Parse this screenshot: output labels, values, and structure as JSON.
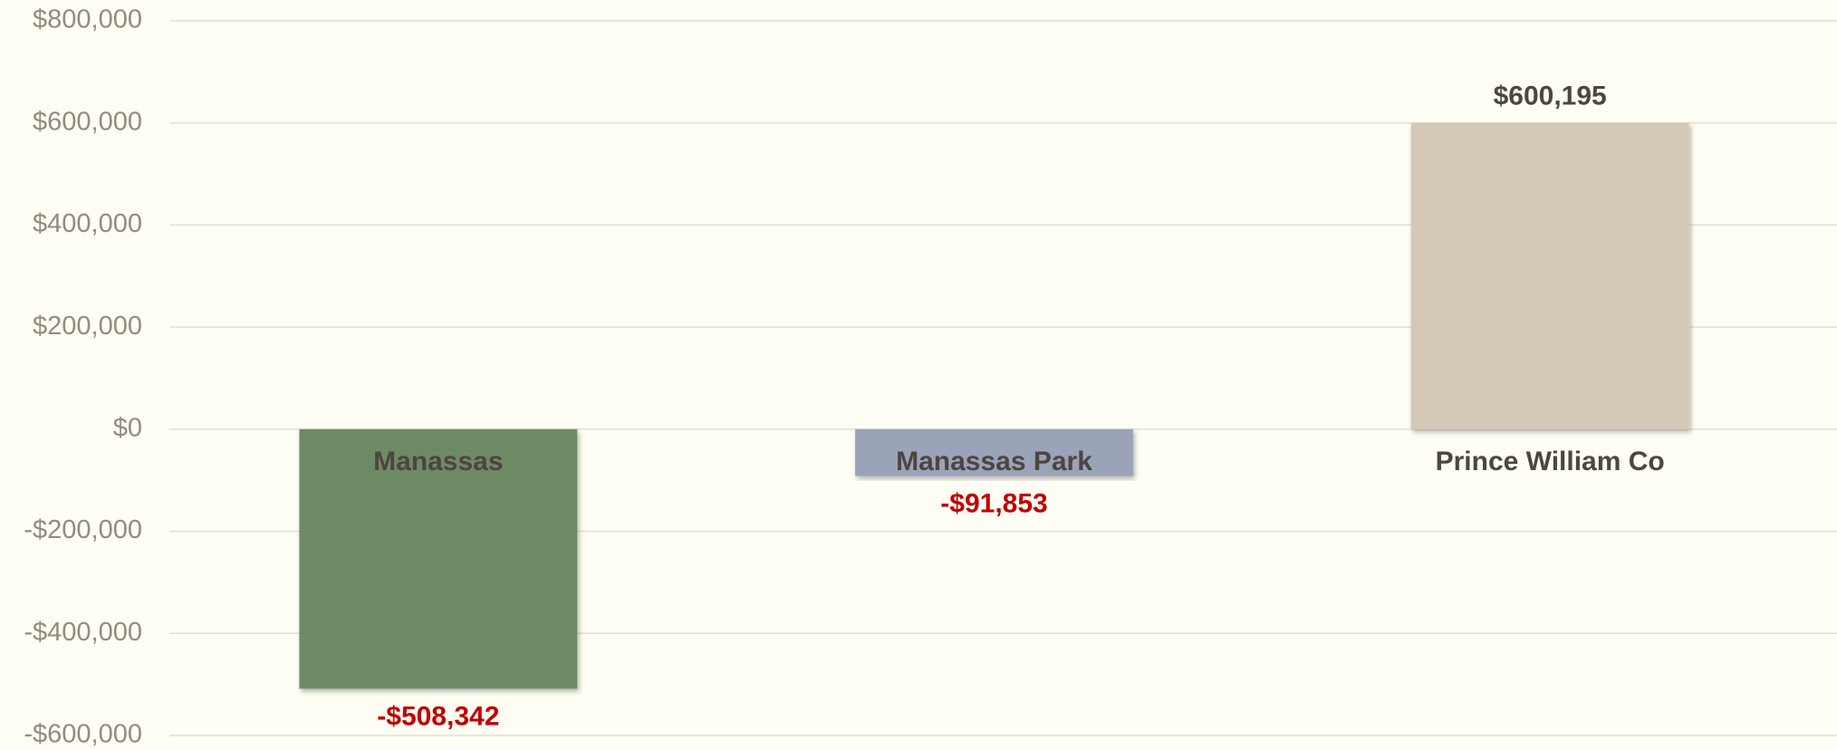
{
  "chart_data": {
    "type": "bar",
    "categories": [
      "Manassas",
      "Manassas Park",
      "Prince William Co"
    ],
    "values": [
      -508342,
      -91853,
      600195
    ],
    "value_labels": [
      "-$508,342",
      "-$91,853",
      "$600,195"
    ],
    "colors": [
      "#6e8a65",
      "#9aa3b8",
      "#d4c8b6"
    ],
    "value_label_colors": [
      "#c00000",
      "#c00000",
      "#4d4540"
    ],
    "ylim": [
      -600000,
      800000
    ],
    "yticks": [
      {
        "value": -600000,
        "label": "-$600,000"
      },
      {
        "value": -400000,
        "label": "-$400,000"
      },
      {
        "value": -200000,
        "label": "-$200,000"
      },
      {
        "value": 0,
        "label": "$0"
      },
      {
        "value": 200000,
        "label": "$200,000"
      },
      {
        "value": 400000,
        "label": "$400,000"
      },
      {
        "value": 600000,
        "label": "$600,000"
      },
      {
        "value": 800000,
        "label": "$800,000"
      }
    ],
    "grid": true
  }
}
